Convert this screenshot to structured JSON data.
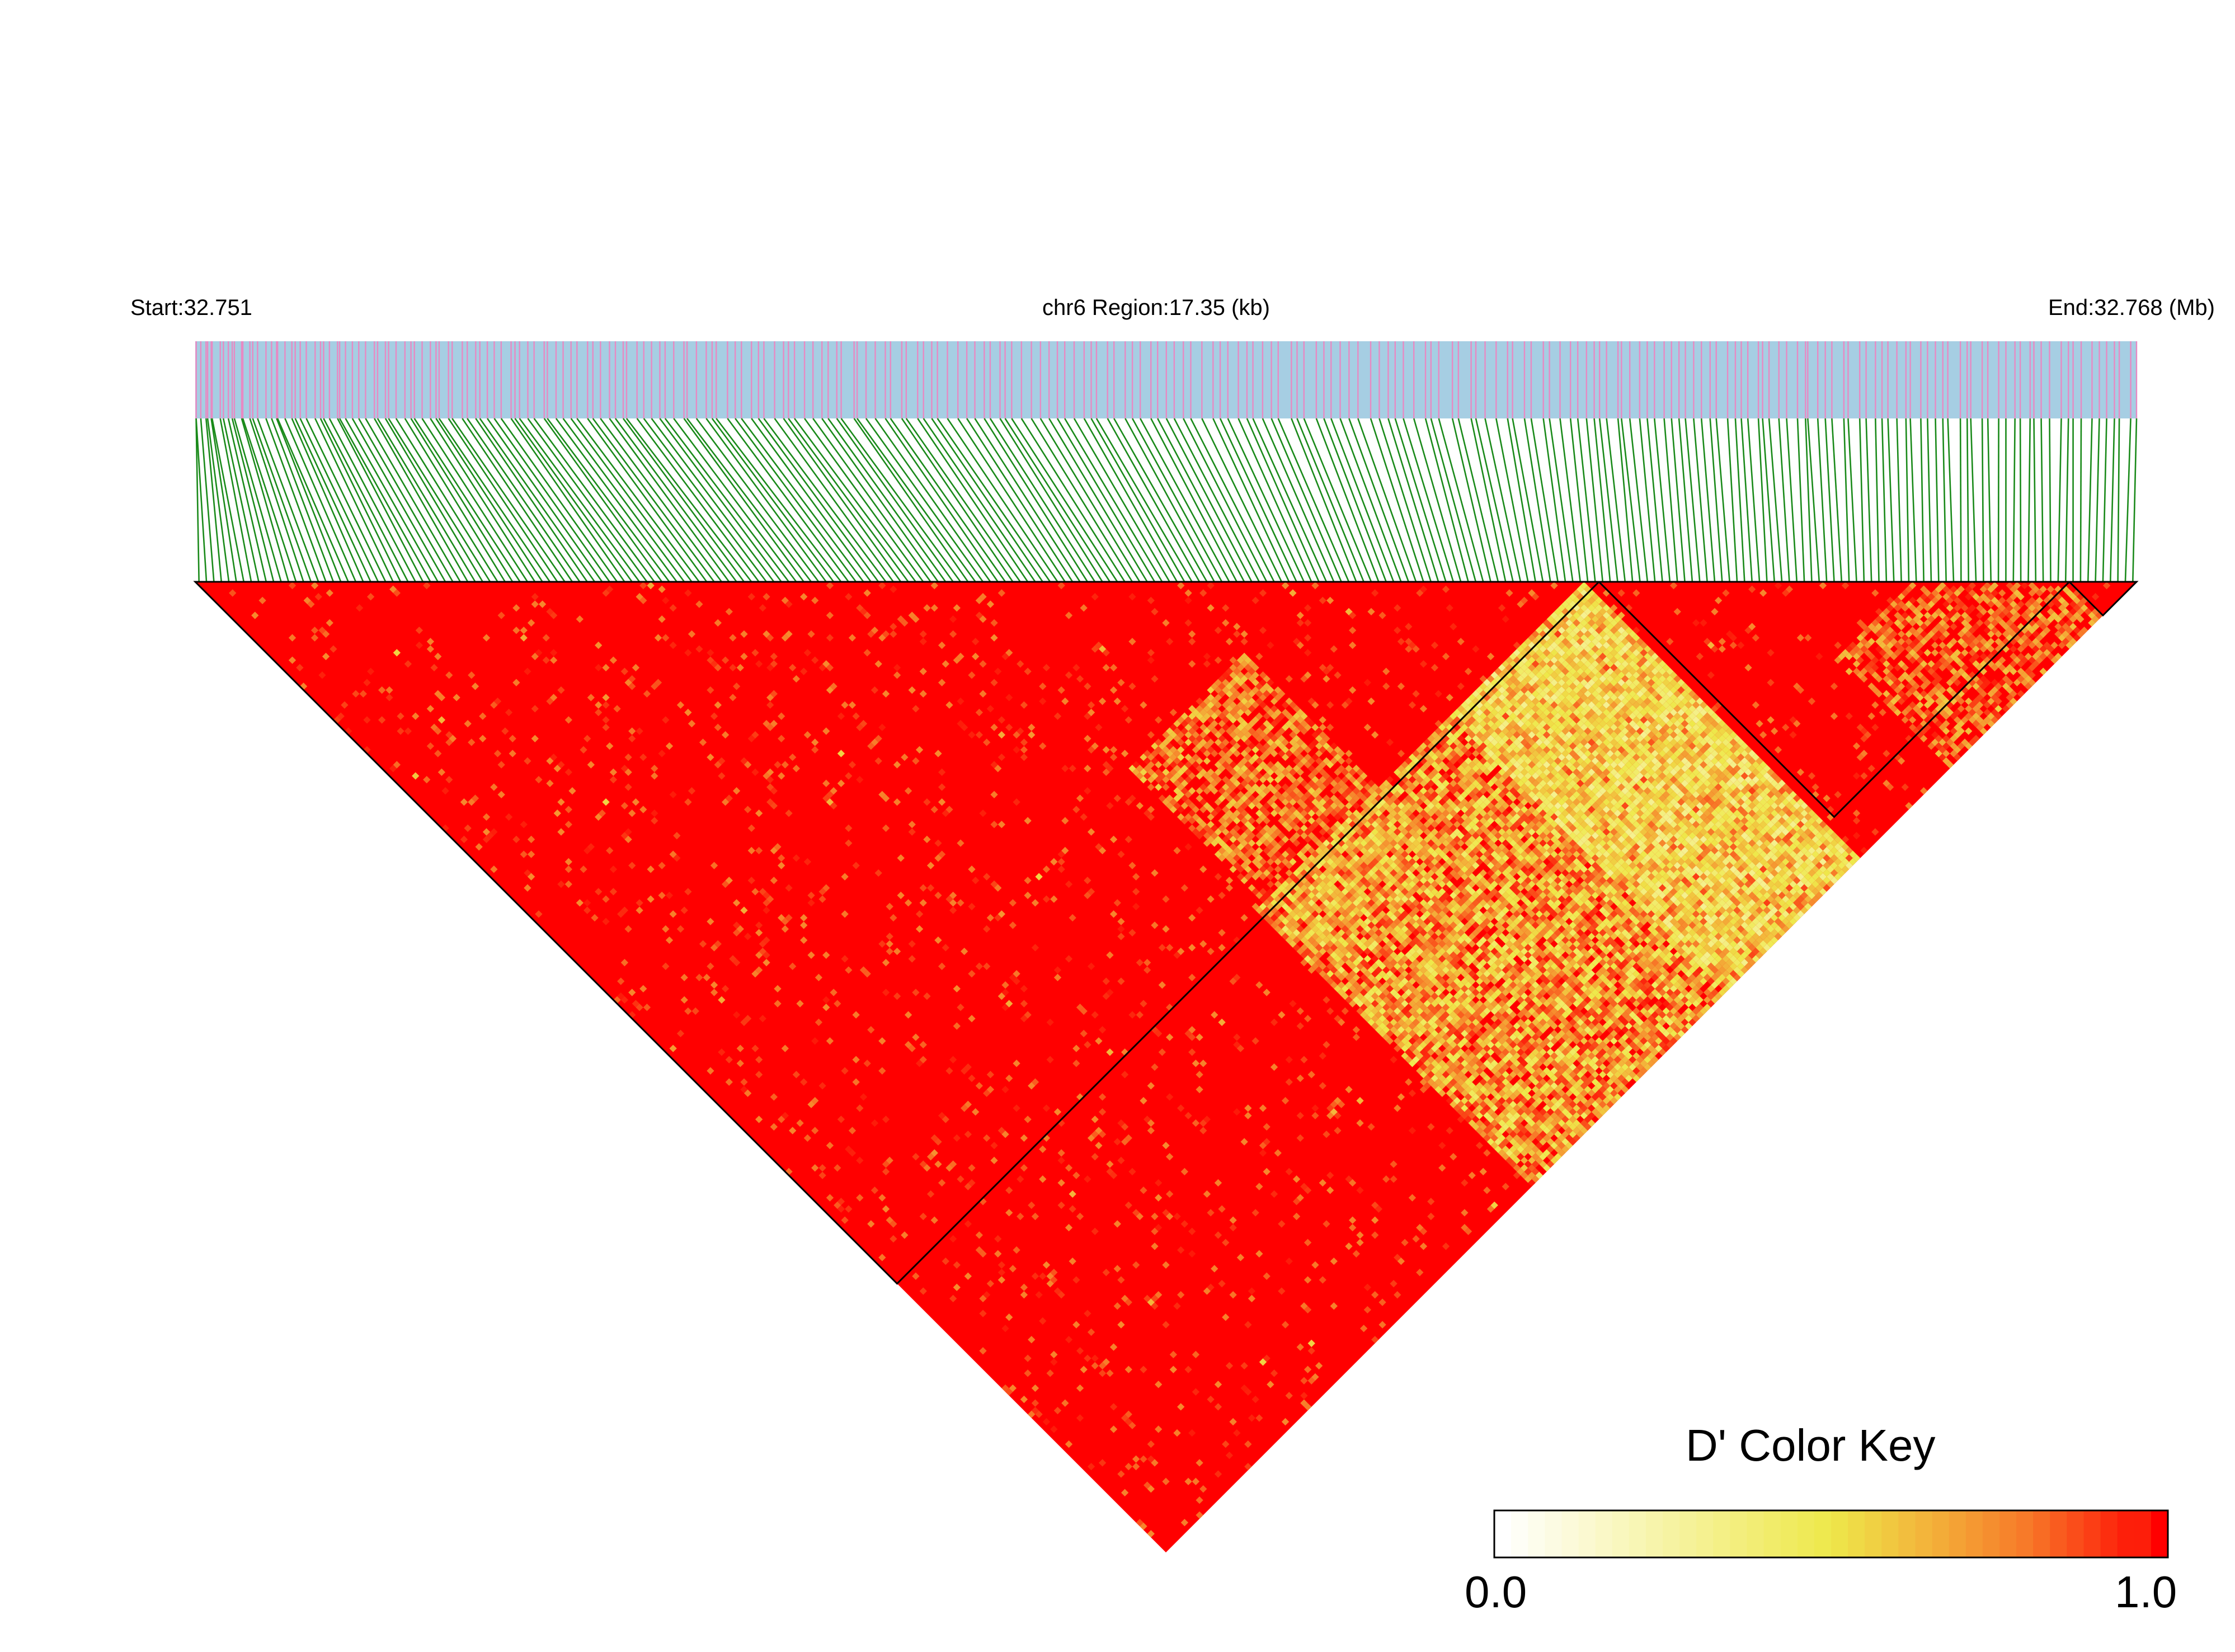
{
  "header": {
    "start_label": "Start:32.751",
    "region_label": "chr6 Region:17.35 (kb)",
    "end_label": "End:32.768 (Mb)"
  },
  "colors": {
    "track_background": "#a6cee3",
    "snp_tick": "#e78ac3",
    "connector": "#1a8a1a",
    "high_ld": "#ff0000",
    "block_outline": "#000000"
  },
  "chart_data": {
    "type": "heatmap",
    "title": "",
    "chromosome": "chr6",
    "region_start_mb": 32.751,
    "region_end_mb": 32.768,
    "region_length_kb": 17.35,
    "n_snps": 260,
    "metric": "D'",
    "value_range": [
      0.0,
      1.0
    ],
    "background_value": 1.0,
    "snp_positions_mb_note": "approximate; one per SNP ordered along region",
    "haplotype_blocks": [
      {
        "first_snp": 0,
        "last_snp": 187
      },
      {
        "first_snp": 188,
        "last_snp": 250
      },
      {
        "first_snp": 251,
        "last_snp": 259
      }
    ],
    "low_ld_regions": [
      {
        "snp_range_a": [
          98,
          185
        ],
        "snp_range_b": [
          186,
          259
        ],
        "mean_d_prime": 0.72
      },
      {
        "snp_range_a": [
          150,
          185
        ],
        "snp_range_b": [
          186,
          259
        ],
        "mean_d_prime": 0.6
      },
      {
        "snp_range_a": [
          100,
          130
        ],
        "snp_range_b": [
          150,
          200
        ],
        "mean_d_prime": 0.85
      },
      {
        "snp_range_a": [
          210,
          250
        ],
        "snp_range_b": [
          230,
          259
        ],
        "mean_d_prime": 0.9
      }
    ],
    "color_key": {
      "title": "D' Color Key",
      "min_label": "0.0",
      "max_label": "1.0",
      "gradient": [
        "#ffffff",
        "#f4ee4c",
        "#f3a83a",
        "#ff0000"
      ]
    }
  }
}
